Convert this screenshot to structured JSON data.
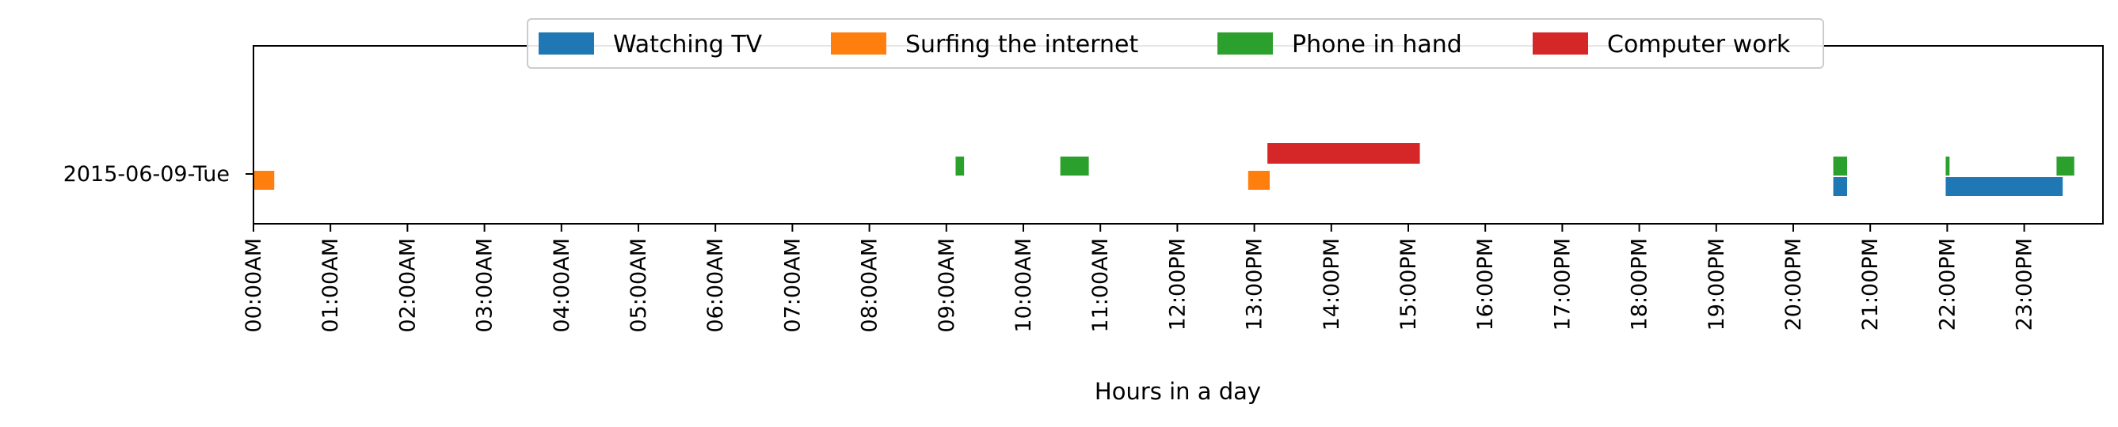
{
  "chart_data": {
    "type": "bar",
    "orientation": "horizontal-timeline",
    "xlabel": "Hours in a day",
    "ylabel": "",
    "title": "",
    "xlim": [
      0,
      24
    ],
    "x_ticks": [
      0,
      1,
      2,
      3,
      4,
      5,
      6,
      7,
      8,
      9,
      10,
      11,
      12,
      13,
      14,
      15,
      16,
      17,
      18,
      19,
      20,
      21,
      22,
      23
    ],
    "x_tick_labels": [
      "00:00AM",
      "01:00AM",
      "02:00AM",
      "03:00AM",
      "04:00AM",
      "05:00AM",
      "06:00AM",
      "07:00AM",
      "08:00AM",
      "09:00AM",
      "10:00AM",
      "11:00AM",
      "12:00PM",
      "13:00PM",
      "14:00PM",
      "15:00PM",
      "16:00PM",
      "17:00PM",
      "18:00PM",
      "19:00PM",
      "20:00PM",
      "21:00PM",
      "22:00PM",
      "23:00PM"
    ],
    "categories": [
      "2015-06-09-Tue"
    ],
    "grid": false,
    "legend_position": "top-center",
    "series": [
      {
        "name": "Watching TV",
        "color": "#1f77b4",
        "intervals": [
          [
            20.52,
            20.7
          ],
          [
            21.98,
            23.5
          ]
        ]
      },
      {
        "name": "Surfing the internet",
        "color": "#ff7f0e",
        "intervals": [
          [
            0.0,
            0.27
          ],
          [
            12.92,
            13.2
          ]
        ]
      },
      {
        "name": "Phone in hand",
        "color": "#2ca02c",
        "intervals": [
          [
            9.12,
            9.23
          ],
          [
            10.48,
            10.85
          ],
          [
            20.52,
            20.7
          ],
          [
            21.98,
            22.03
          ],
          [
            23.42,
            23.65
          ]
        ]
      },
      {
        "name": "Computer work",
        "color": "#d62728",
        "intervals": [
          [
            13.17,
            15.15
          ]
        ]
      }
    ]
  }
}
